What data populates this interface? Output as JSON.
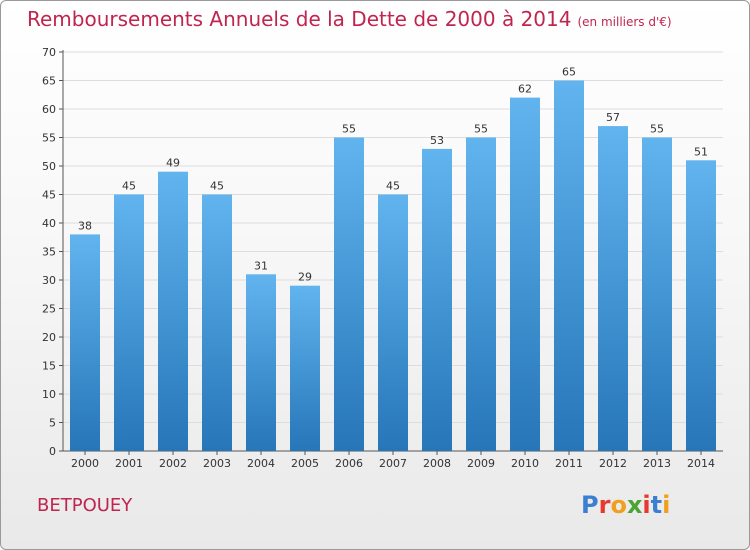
{
  "title": "Remboursements Annuels de la Dette de 2000 à 2014",
  "subtitle": "(en milliers d'€)",
  "commune": "BETPOUEY",
  "logo": {
    "text": "Proxiti",
    "colors": [
      "#3a7fd0",
      "#e8392f",
      "#f0a020",
      "#4aa535",
      "#e8392f",
      "#3a7fd0",
      "#f0a020"
    ]
  },
  "colors": {
    "title": "#c0254f",
    "bar_light": "#62b4ef",
    "bar_dark": "#2676b8",
    "grid": "#dddddd"
  },
  "chart_data": {
    "type": "bar",
    "categories": [
      "2000",
      "2001",
      "2002",
      "2003",
      "2004",
      "2005",
      "2006",
      "2007",
      "2008",
      "2009",
      "2010",
      "2011",
      "2012",
      "2013",
      "2014"
    ],
    "values": [
      38,
      45,
      49,
      45,
      31,
      29,
      55,
      45,
      53,
      55,
      62,
      65,
      57,
      55,
      51
    ],
    "ylim": [
      0,
      70
    ],
    "yticks": [
      0,
      5,
      10,
      15,
      20,
      25,
      30,
      35,
      40,
      45,
      50,
      55,
      60,
      65,
      70
    ],
    "grid": true,
    "data_labels": true
  }
}
